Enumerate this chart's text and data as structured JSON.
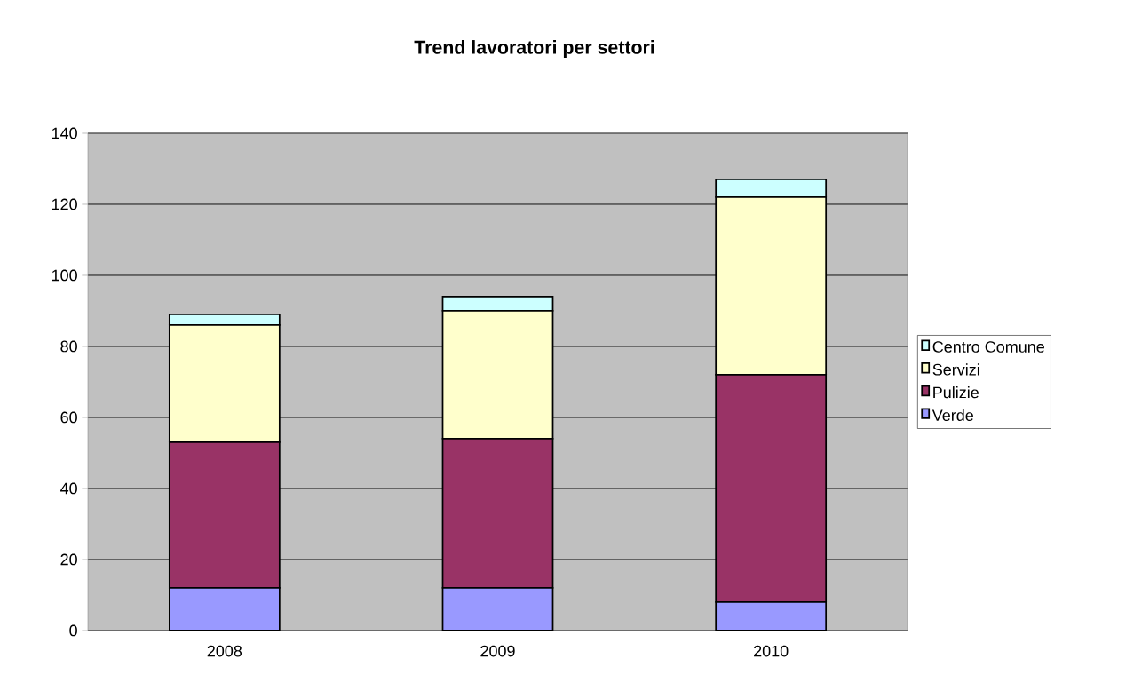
{
  "chart_data": {
    "type": "bar",
    "title": "Trend lavoratori per settori",
    "stacked": true,
    "categories": [
      "2008",
      "2009",
      "2010"
    ],
    "series": [
      {
        "name": "Verde",
        "color": "#9999ff",
        "values": [
          12,
          12,
          8
        ]
      },
      {
        "name": "Pulizie",
        "color": "#993366",
        "values": [
          41,
          42,
          64
        ]
      },
      {
        "name": "Servizi",
        "color": "#ffffcc",
        "values": [
          33,
          36,
          50
        ]
      },
      {
        "name": "Centro Comune",
        "color": "#ccffff",
        "values": [
          3,
          4,
          5
        ]
      }
    ],
    "ylim": [
      0,
      140
    ],
    "yticks": [
      0,
      20,
      40,
      60,
      80,
      100,
      120,
      140
    ],
    "grid": "y",
    "legend": "right"
  }
}
